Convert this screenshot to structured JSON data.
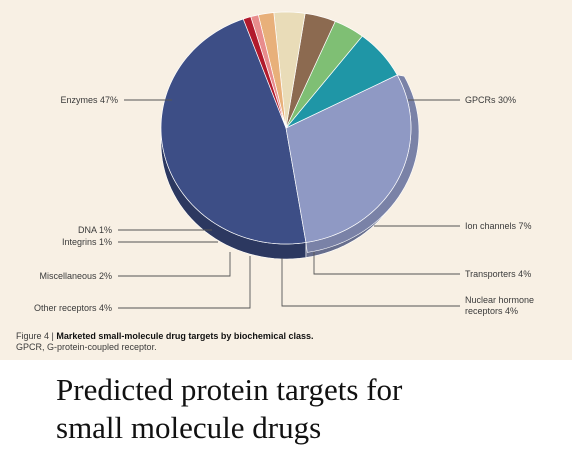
{
  "chart_data": {
    "type": "pie",
    "title": "",
    "slices": [
      {
        "label": "Enzymes 47%",
        "value": 47,
        "color": "#3d4e86"
      },
      {
        "label": "GPCRs 30%",
        "value": 30,
        "color": "#8f99c4"
      },
      {
        "label": "Ion channels 7%",
        "value": 7,
        "color": "#1f96a6"
      },
      {
        "label": "Transporters 4%",
        "value": 4,
        "color": "#7fbf74"
      },
      {
        "label": "Nuclear hormone receptors 4%",
        "value": 4,
        "color": "#8c6a50"
      },
      {
        "label": "Other receptors 4%",
        "value": 4,
        "color": "#e9dcb8"
      },
      {
        "label": "Miscellaneous 2%",
        "value": 2,
        "color": "#e8b07a"
      },
      {
        "label": "Integrins 1%",
        "value": 1,
        "color": "#e88c8c"
      },
      {
        "label": "DNA 1%",
        "value": 1,
        "color": "#b11a2c"
      }
    ],
    "callouts": [
      {
        "text": "Enzymes 47%",
        "slice": 0
      },
      {
        "text": "GPCRs 30%",
        "slice": 1
      },
      {
        "text": "Ion channels 7%",
        "slice": 2
      },
      {
        "text": "Transporters 4%",
        "slice": 3
      },
      {
        "text": "Nuclear hormone",
        "text2": "receptors 4%",
        "slice": 4
      },
      {
        "text": "Other receptors 4%",
        "slice": 5
      },
      {
        "text": "Miscellaneous 2%",
        "slice": 6
      },
      {
        "text": "Integrins 1%",
        "slice": 7
      },
      {
        "text": "DNA 1%",
        "slice": 8
      }
    ]
  },
  "caption": {
    "figure_number": "Figure 4 |",
    "bold_title": "Marketed small-molecule drug targets by biochemical class.",
    "note": "GPCR, G-protein-coupled receptor."
  },
  "slide_text": {
    "line1": "Predicted protein targets for",
    "line2": "small molecule drugs"
  }
}
